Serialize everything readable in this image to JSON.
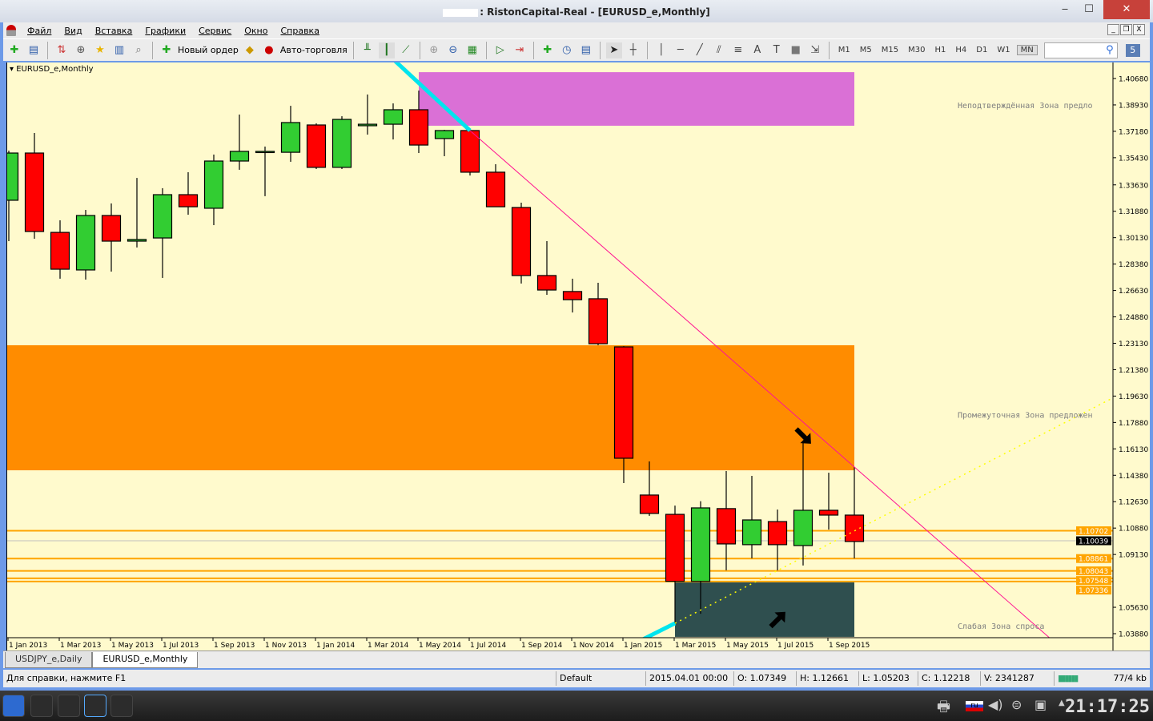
{
  "window": {
    "title": ": RistonCapital-Real - [EURUSD_e,Monthly]",
    "minimize": "‒",
    "maximize": "☐",
    "close": "✕"
  },
  "menu": [
    "Файл",
    "Вид",
    "Вставка",
    "Графики",
    "Сервис",
    "Окно",
    "Справка"
  ],
  "toolbar": {
    "new_order": "Новый ордер",
    "auto_trading": "Авто-торговля",
    "timeframes": [
      "M1",
      "M5",
      "M15",
      "M30",
      "H1",
      "H4",
      "D1",
      "W1",
      "MN"
    ],
    "active_timeframe": "MN",
    "search_placeholder": "",
    "notifications": "5"
  },
  "chart_symbol": "EURUSD_e,Monthly",
  "chart_data": {
    "type": "candlestick",
    "colors": {
      "bull": "#32cd32",
      "bear": "#ff0000",
      "background": "#fffacd"
    },
    "candles": [
      {
        "t": "2013-01",
        "o": 1.3261,
        "h": 1.359,
        "l": 1.299,
        "c": 1.3574
      },
      {
        "t": "2013-02",
        "o": 1.3574,
        "h": 1.3707,
        "l": 1.3006,
        "c": 1.3054
      },
      {
        "t": "2013-03",
        "o": 1.3048,
        "h": 1.3128,
        "l": 1.2741,
        "c": 1.2804
      },
      {
        "t": "2013-04",
        "o": 1.2799,
        "h": 1.3197,
        "l": 1.2735,
        "c": 1.316
      },
      {
        "t": "2013-05",
        "o": 1.316,
        "h": 1.324,
        "l": 1.2788,
        "c": 1.299
      },
      {
        "t": "2013-06",
        "o": 1.299,
        "h": 1.3409,
        "l": 1.2948,
        "c": 1.3001
      },
      {
        "t": "2013-07",
        "o": 1.3011,
        "h": 1.3341,
        "l": 1.2746,
        "c": 1.3298
      },
      {
        "t": "2013-08",
        "o": 1.3298,
        "h": 1.3447,
        "l": 1.3165,
        "c": 1.3218
      },
      {
        "t": "2013-09",
        "o": 1.3208,
        "h": 1.3564,
        "l": 1.3096,
        "c": 1.3521
      },
      {
        "t": "2013-10",
        "o": 1.3521,
        "h": 1.3829,
        "l": 1.3463,
        "c": 1.3585
      },
      {
        "t": "2013-11",
        "o": 1.3585,
        "h": 1.3617,
        "l": 1.3288,
        "c": 1.3585
      },
      {
        "t": "2013-12",
        "o": 1.3579,
        "h": 1.3887,
        "l": 1.3516,
        "c": 1.3776
      },
      {
        "t": "2014-01",
        "o": 1.376,
        "h": 1.3771,
        "l": 1.3468,
        "c": 1.3479
      },
      {
        "t": "2014-02",
        "o": 1.3479,
        "h": 1.3818,
        "l": 1.3468,
        "c": 1.3797
      },
      {
        "t": "2014-03",
        "o": 1.3755,
        "h": 1.3962,
        "l": 1.3696,
        "c": 1.3765
      },
      {
        "t": "2014-04",
        "o": 1.3765,
        "h": 1.3903,
        "l": 1.3664,
        "c": 1.3861
      },
      {
        "t": "2014-05",
        "o": 1.3861,
        "h": 1.3988,
        "l": 1.3574,
        "c": 1.3627
      },
      {
        "t": "2014-06",
        "o": 1.367,
        "h": 1.3728,
        "l": 1.3553,
        "c": 1.3723
      },
      {
        "t": "2014-07",
        "o": 1.3723,
        "h": 1.3728,
        "l": 1.3425,
        "c": 1.3447
      },
      {
        "t": "2014-08",
        "o": 1.3447,
        "h": 1.35,
        "l": 1.3218,
        "c": 1.3218
      },
      {
        "t": "2014-09",
        "o": 1.3213,
        "h": 1.3245,
        "l": 1.2709,
        "c": 1.2762
      },
      {
        "t": "2014-10",
        "o": 1.2762,
        "h": 1.299,
        "l": 1.2634,
        "c": 1.2666
      },
      {
        "t": "2014-11",
        "o": 1.2656,
        "h": 1.2741,
        "l": 1.2517,
        "c": 1.2602
      },
      {
        "t": "2014-12",
        "o": 1.2608,
        "h": 1.2714,
        "l": 1.23,
        "c": 1.231
      },
      {
        "t": "2015-01",
        "o": 1.2289,
        "h": 1.2294,
        "l": 1.1386,
        "c": 1.1551
      },
      {
        "t": "2015-02",
        "o": 1.1307,
        "h": 1.153,
        "l": 1.1169,
        "c": 1.1185
      },
      {
        "t": "2015-03",
        "o": 1.1179,
        "h": 1.1237,
        "l": 1.0457,
        "c": 1.0735
      },
      {
        "t": "2015-04",
        "o": 1.07349,
        "h": 1.12661,
        "l": 1.05203,
        "c": 1.12218
      },
      {
        "t": "2015-05",
        "o": 1.1217,
        "h": 1.1466,
        "l": 1.0808,
        "c": 1.0983
      },
      {
        "t": "2015-06",
        "o": 1.0978,
        "h": 1.1434,
        "l": 1.0887,
        "c": 1.1142
      },
      {
        "t": "2015-07",
        "o": 1.1131,
        "h": 1.1211,
        "l": 1.0808,
        "c": 1.0978
      },
      {
        "t": "2015-08",
        "o": 1.0972,
        "h": 1.1652,
        "l": 1.084,
        "c": 1.1206
      },
      {
        "t": "2015-09",
        "o": 1.1206,
        "h": 1.1455,
        "l": 1.1078,
        "c": 1.1174
      },
      {
        "t": "2015-10",
        "o": 1.1174,
        "h": 1.1493,
        "l": 1.0887,
        "c": 1.0999
      }
    ],
    "ylim": [
      1.0388,
      1.4068
    ],
    "y_ticks": [
      "1.40680",
      "1.38930",
      "1.37180",
      "1.35430",
      "1.33630",
      "1.31880",
      "1.30130",
      "1.28380",
      "1.26630",
      "1.24880",
      "1.23130",
      "1.21380",
      "1.19630",
      "1.17880",
      "1.16130",
      "1.14380",
      "1.12630",
      "1.10880",
      "1.09130",
      "1.05630",
      "1.03880"
    ],
    "x_ticks": [
      "1 Jan 2013",
      "1 Mar 2013",
      "1 May 2013",
      "1 Jul 2013",
      "1 Sep 2013",
      "1 Nov 2013",
      "1 Jan 2014",
      "1 Mar 2014",
      "1 May 2014",
      "1 Jul 2014",
      "1 Sep 2014",
      "1 Nov 2014",
      "1 Jan 2015",
      "1 Mar 2015",
      "1 May 2015",
      "1 Jul 2015",
      "1 Sep 2015"
    ],
    "zones": [
      {
        "label": "Неподтверждённая Зона предло",
        "from": "2014-05",
        "to": "2015-10",
        "top": 1.411,
        "bottom": 1.3755,
        "color": "#da70d6",
        "label_price": 1.3893
      },
      {
        "label": "Промежуточная Зона предложен",
        "from": "start",
        "to": "2015-10",
        "top": 1.23,
        "bottom": 1.1471,
        "color": "#ff8c00",
        "label_price": 1.184
      },
      {
        "label": "Слабая Зона спроса",
        "from": "2015-03",
        "to": "2015-10",
        "top": 1.0728,
        "bottom": 1.0367,
        "color": "#2f4f4f",
        "label_price": 1.044
      }
    ],
    "levels": [
      {
        "price": "1.10702",
        "color": "#ffa500"
      },
      {
        "price": "1.08861",
        "color": "#ffa500"
      },
      {
        "price": "1.08043",
        "color": "#ffa500"
      },
      {
        "price": "1.07548",
        "color": "#ffa500"
      },
      {
        "price": "1.07336",
        "color": "#ffa500"
      }
    ],
    "bid": "1.10039",
    "trendlines": [
      {
        "from": [
          "2014-07",
          1.3723
        ],
        "to": [
          "2015-10",
          1.1493
        ],
        "color": "#ff1493",
        "style": "solid",
        "extend": true
      },
      {
        "from": [
          "2014-04",
          1.4196
        ],
        "to": [
          "2014-07",
          1.3723
        ],
        "color": "#00e5ee",
        "style": "thick"
      },
      {
        "from": [
          "2015-01",
          1.0287
        ],
        "to": [
          "2015-03",
          1.0457
        ],
        "color": "#00e5ee",
        "style": "thick"
      },
      {
        "from": [
          "2015-03",
          1.0457
        ],
        "to": [
          "2016-08",
          1.1943
        ],
        "color": "#ffff00",
        "style": "dotted"
      }
    ],
    "arrows": [
      {
        "direction": "down-right",
        "at": [
          "2015-08",
          1.17
        ]
      },
      {
        "direction": "up-right",
        "at": [
          "2015-07",
          1.048
        ]
      }
    ]
  },
  "tabs": [
    "USDJPY_e,Daily",
    "EURUSD_e,Monthly"
  ],
  "status": {
    "help": "Для справки, нажмите F1",
    "profile": "Default",
    "time": "2015.04.01 00:00",
    "open": "O: 1.07349",
    "high": "H: 1.12661",
    "low": "L: 1.05203",
    "close": "C: 1.12218",
    "volume": "V: 2341287",
    "traffic": "77/4 kb"
  },
  "taskbar": {
    "clock": "21:17:25",
    "language": "ru"
  }
}
